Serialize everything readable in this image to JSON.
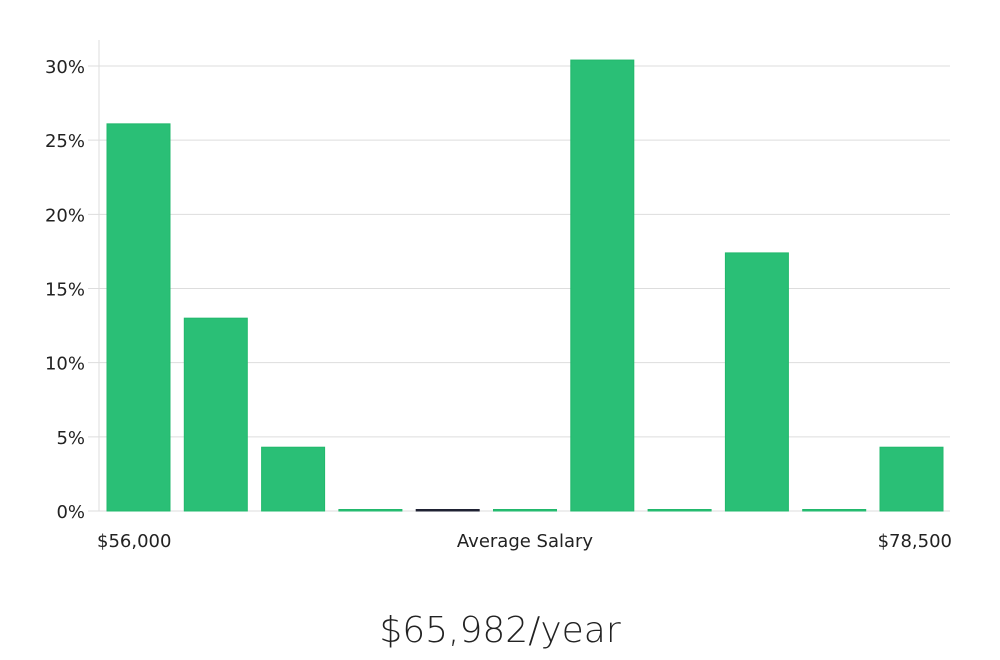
{
  "chart_data": {
    "type": "bar",
    "title": "",
    "xlabel": "Average Salary",
    "ylabel": "",
    "x_min_label": "$56,000",
    "x_max_label": "$78,500",
    "categories": [
      "bin1",
      "bin2",
      "bin3",
      "bin4",
      "bin5",
      "bin6",
      "bin7",
      "bin8",
      "bin9",
      "bin10",
      "bin11"
    ],
    "values": [
      26.1,
      13.0,
      4.3,
      0,
      0,
      0,
      30.4,
      0,
      17.4,
      0,
      4.3
    ],
    "highlight_index": 4,
    "ylim": [
      0,
      31.5
    ],
    "yticks": [
      0,
      5,
      10,
      15,
      20,
      25,
      30
    ],
    "ytick_labels": [
      "0%",
      "5%",
      "10%",
      "15%",
      "20%",
      "25%",
      "30%"
    ],
    "grid": true,
    "colors": {
      "bar": "#2abf76",
      "bar_edge": "#22b86c",
      "highlight": "#1f2233",
      "grid": "#dddddd"
    }
  },
  "summary": {
    "average_salary": "$65,982/year"
  }
}
